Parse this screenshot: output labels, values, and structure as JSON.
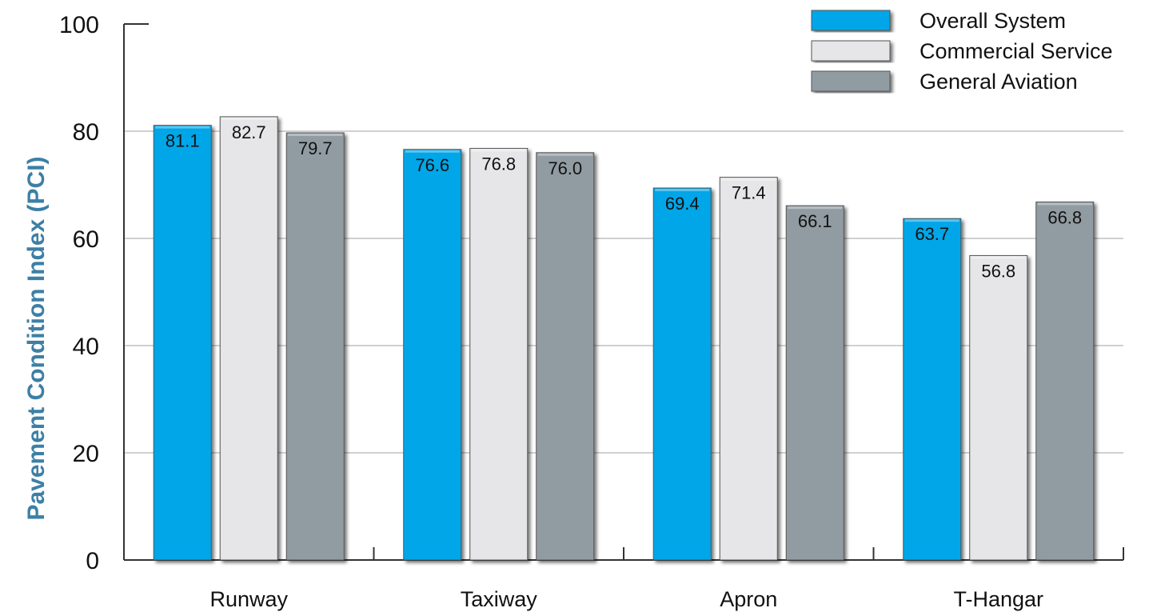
{
  "chart_data": {
    "type": "bar",
    "title": "",
    "xlabel": "",
    "ylabel": "Pavement Condition Index (PCI)",
    "ylim": [
      0,
      100
    ],
    "yticks": [
      0,
      20,
      40,
      60,
      80,
      100
    ],
    "grid": true,
    "legend_position": "top-right",
    "categories": [
      "Runway",
      "Taxiway",
      "Apron",
      "T-Hangar"
    ],
    "series": [
      {
        "name": "Overall System",
        "color": "#00a6e8",
        "values": [
          81.1,
          76.6,
          69.4,
          63.7
        ],
        "labels": [
          "81.1",
          "76.6",
          "69.4",
          "63.7"
        ]
      },
      {
        "name": "Commercial Service",
        "color": "#e6e6e8",
        "values": [
          82.7,
          76.8,
          71.4,
          56.8
        ],
        "labels": [
          "82.7",
          "76.8",
          "71.4",
          "56.8"
        ]
      },
      {
        "name": "General Aviation",
        "color": "#919ca2",
        "values": [
          79.7,
          76.0,
          66.1,
          66.8
        ],
        "labels": [
          "79.7",
          "76.0",
          "66.1",
          "66.8"
        ]
      }
    ]
  }
}
